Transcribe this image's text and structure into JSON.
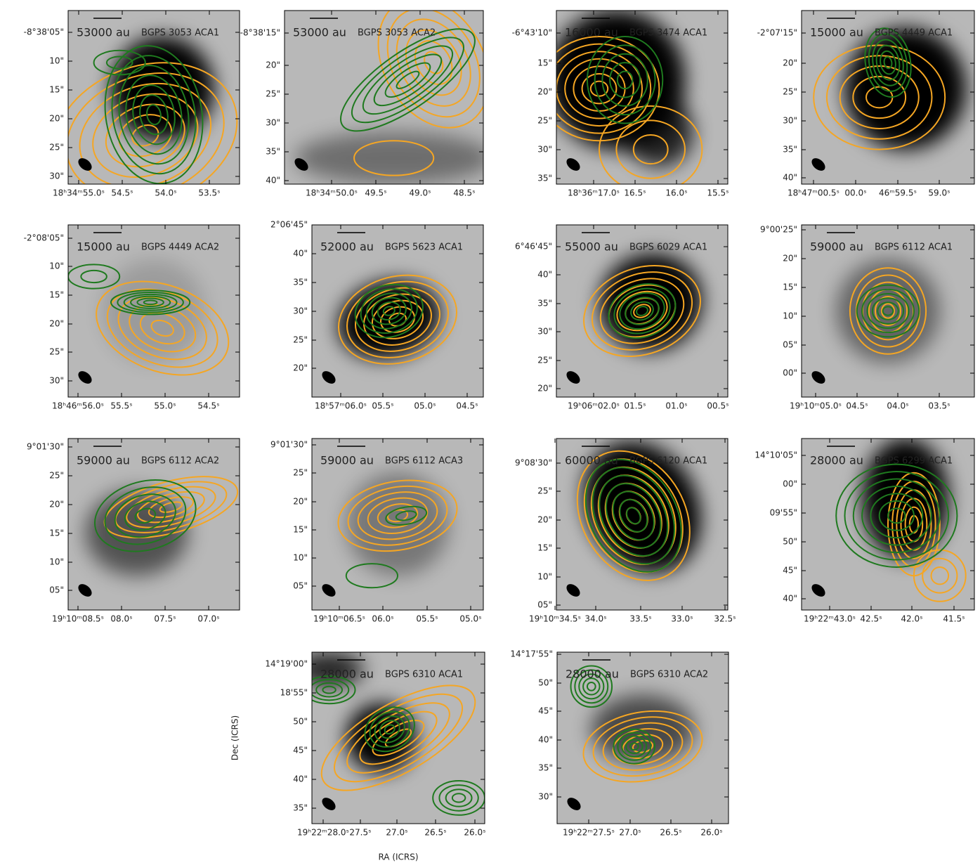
{
  "panels": [
    {
      "scale": "53000 au",
      "source": "BGPS 3053 ACA1",
      "yticks": [
        "-8°38'05\"",
        "10\"",
        "15\"",
        "20\"",
        "25\"",
        "30\""
      ],
      "xticks": [
        "18ʰ34ᵐ55.0ˢ",
        "54.5ˢ",
        "54.0ˢ",
        "53.5ˢ"
      ]
    },
    {
      "scale": "53000 au",
      "source": "BGPS 3053 ACA2",
      "yticks": [
        "-8°38'15\"",
        "20\"",
        "25\"",
        "30\"",
        "35\"",
        "40\""
      ],
      "xticks": [
        "18ʰ34ᵐ50.0ˢ",
        "49.5ˢ",
        "49.0ˢ",
        "48.5ˢ"
      ]
    },
    {
      "scale": "16000 au",
      "source": "BGPS 3474 ACA1",
      "yticks": [
        "-6°43'10\"",
        "15\"",
        "20\"",
        "25\"",
        "30\"",
        "35\""
      ],
      "xticks": [
        "18ʰ36ᵐ17.0ˢ",
        "16.5ˢ",
        "16.0ˢ",
        "15.5ˢ"
      ]
    },
    {
      "scale": "15000 au",
      "source": "BGPS 4449 ACA1",
      "yticks": [
        "-2°07'15\"",
        "20\"",
        "25\"",
        "30\"",
        "35\"",
        "40\""
      ],
      "xticks": [
        "18ʰ47ᵐ00.5ˢ",
        "00.0ˢ",
        "46ᵐ59.5ˢ",
        "59.0ˢ"
      ]
    },
    {
      "scale": "15000 au",
      "source": "BGPS 4449 ACA2",
      "yticks": [
        "-2°08'05\"",
        "10\"",
        "15\"",
        "20\"",
        "25\"",
        "30\""
      ],
      "xticks": [
        "18ʰ46ᵐ56.0ˢ",
        "55.5ˢ",
        "55.0ˢ",
        "54.5ˢ"
      ]
    },
    {
      "scale": "52000 au",
      "source": "BGPS 5623 ACA1",
      "yticks": [
        "2°06'45\"",
        "40\"",
        "35\"",
        "30\"",
        "25\"",
        "20\""
      ],
      "xticks": [
        "18ʰ57ᵐ06.0ˢ",
        "05.5ˢ",
        "05.0ˢ",
        "04.5ˢ"
      ]
    },
    {
      "scale": "55000 au",
      "source": "BGPS 6029 ACA1",
      "yticks": [
        "6°46'45\"",
        "40\"",
        "35\"",
        "30\"",
        "25\"",
        "20\""
      ],
      "xticks": [
        "19ʰ06ᵐ02.0ˢ",
        "01.5ˢ",
        "01.0ˢ",
        "00.5ˢ"
      ]
    },
    {
      "scale": "59000 au",
      "source": "BGPS 6112 ACA1",
      "yticks": [
        "9°00'25\"",
        "20\"",
        "15\"",
        "10\"",
        "05\"",
        "00\""
      ],
      "xticks": [
        "19ʰ10ᵐ05.0ˢ",
        "04.5ˢ",
        "04.0ˢ",
        "03.5ˢ"
      ]
    },
    {
      "scale": "59000 au",
      "source": "BGPS 6112 ACA2",
      "yticks": [
        "9°01'30\"",
        "25\"",
        "20\"",
        "15\"",
        "10\"",
        "05\""
      ],
      "xticks": [
        "19ʰ10ᵐ08.5ˢ",
        "08.0ˢ",
        "07.5ˢ",
        "07.0ˢ"
      ]
    },
    {
      "scale": "59000 au",
      "source": "BGPS 6112 ACA3",
      "yticks": [
        "9°01'30\"",
        "25\"",
        "20\"",
        "15\"",
        "10\"",
        "05\""
      ],
      "xticks": [
        "19ʰ10ᵐ06.5ˢ",
        "06.0ˢ",
        "05.5ˢ",
        "05.0ˢ"
      ]
    },
    {
      "scale": "60000 au",
      "source": "BGPS 6120 ACA1",
      "yticks": [
        "9°08'30\"",
        "25\"",
        "20\"",
        "15\"",
        "10\"",
        "05\""
      ],
      "xticks": [
        "19ʰ10ᵐ34.5ˢ",
        "34.0ˢ",
        "33.5ˢ",
        "33.0ˢ",
        "32.5ˢ"
      ]
    },
    {
      "scale": "28000 au",
      "source": "BGPS 6299 ACA1",
      "yticks": [
        "14°10'05\"",
        "00\"",
        "09'55\"",
        "50\"",
        "45\"",
        "40\""
      ],
      "xticks": [
        "19ʰ22ᵐ43.0ˢ",
        "42.5ˢ",
        "42.0ˢ",
        "41.5ˢ"
      ]
    },
    {
      "scale": "28000 au",
      "source": "BGPS 6310 ACA1",
      "yticks": [
        "14°19'00\"",
        "18'55\"",
        "50\"",
        "45\"",
        "40\"",
        "35\""
      ],
      "xticks": [
        "19ʰ22ᵐ28.0ˢ",
        "27.5ˢ",
        "27.0ˢ",
        "26.5ˢ",
        "26.0ˢ"
      ]
    },
    {
      "scale": "28000 au",
      "source": "BGPS 6310 ACA2",
      "yticks": [
        "14°17'55\"",
        "50\"",
        "45\"",
        "40\"",
        "35\"",
        "30\""
      ],
      "xticks": [
        "19ʰ22ᵐ27.5ˢ",
        "27.0ˢ",
        "26.5ˢ",
        "26.0ˢ"
      ]
    }
  ],
  "axes": {
    "xlabel": "RA (ICRS)",
    "ylabel": "Dec (ICRS)"
  }
}
